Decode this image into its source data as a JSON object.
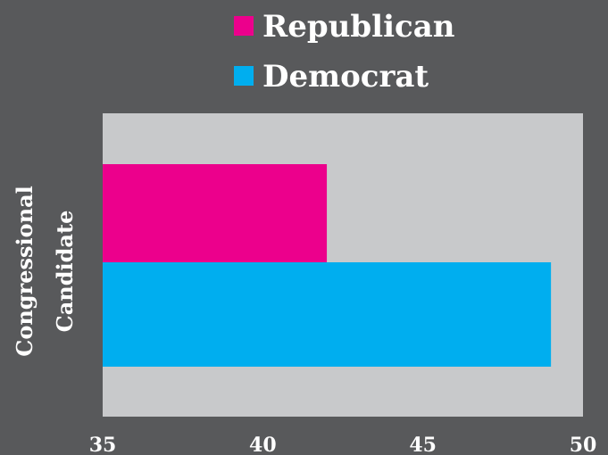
{
  "chart_data": {
    "type": "bar",
    "orientation": "horizontal",
    "categories": [
      "Congressional Candidate"
    ],
    "series": [
      {
        "name": "Republican",
        "values": [
          42
        ],
        "color": "#ec008c"
      },
      {
        "name": "Democrat",
        "values": [
          49
        ],
        "color": "#00aeef"
      }
    ],
    "ylabel_lines": [
      "Congressional",
      "Candidate"
    ],
    "xlim": [
      35,
      50
    ],
    "xticks": [
      35,
      40,
      45,
      50
    ],
    "grid": false,
    "legend_position": "top",
    "colors": {
      "background": "#58595b",
      "plot_area": "#c8c9cb",
      "text": "#ffffff"
    }
  }
}
